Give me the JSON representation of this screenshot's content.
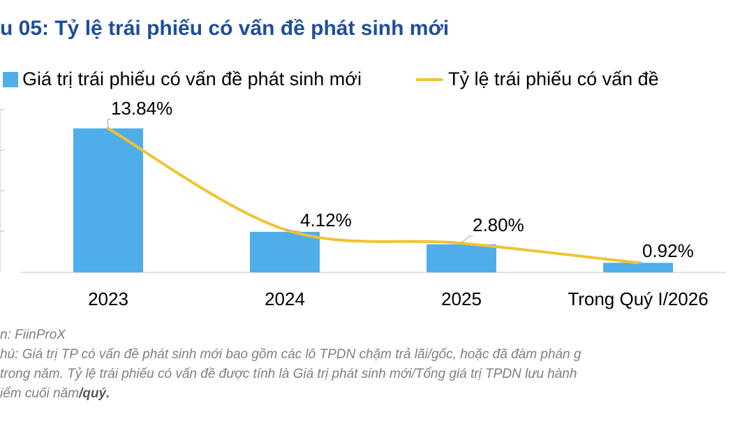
{
  "title": "u 05: Tỷ lệ trái phiếu có vấn đề phát sinh mới",
  "colors": {
    "bar": "#4faee9",
    "line": "#f2c232",
    "title": "#1f4e99",
    "axis": "#d9d9d9",
    "leader": "#a6a6a6"
  },
  "chart_data": {
    "type": "bar",
    "categories": [
      "2023",
      "2024",
      "2025",
      "Trong Quý I/2026"
    ],
    "series": [
      {
        "name": "Giá trị trái phiếu có vấn đề phát sinh mới",
        "type": "bar",
        "values": [
          13.84,
          3.9,
          2.7,
          0.92
        ],
        "axis": "left"
      },
      {
        "name": "Tỷ lệ trái phiếu có vấn đề",
        "type": "line",
        "smooth": true,
        "values": [
          13.84,
          4.12,
          2.8,
          0.92
        ],
        "data_labels": [
          "13.84%",
          "4.12%",
          "2.80%",
          "0.92%"
        ],
        "axis": "right"
      }
    ],
    "ylim": [
      0,
      14.5
    ],
    "legend_position": "top",
    "grid": false
  },
  "footer": {
    "source": "n: FiinProX",
    "note_line1": "hú: Giá trị TP có vấn đề phát sinh mới bao gồm các lô TPDN chậm trả lãi/gốc, hoặc đã đàm phán g",
    "note_line2": "trong năm. Tỷ lệ trái phiếu có vấn đề được tính là Giá trị phát sinh mới/Tổng giá trị TPDN lưu hành",
    "note_line3_a": "iểm cuối năm",
    "note_line3_b": "/quý."
  }
}
